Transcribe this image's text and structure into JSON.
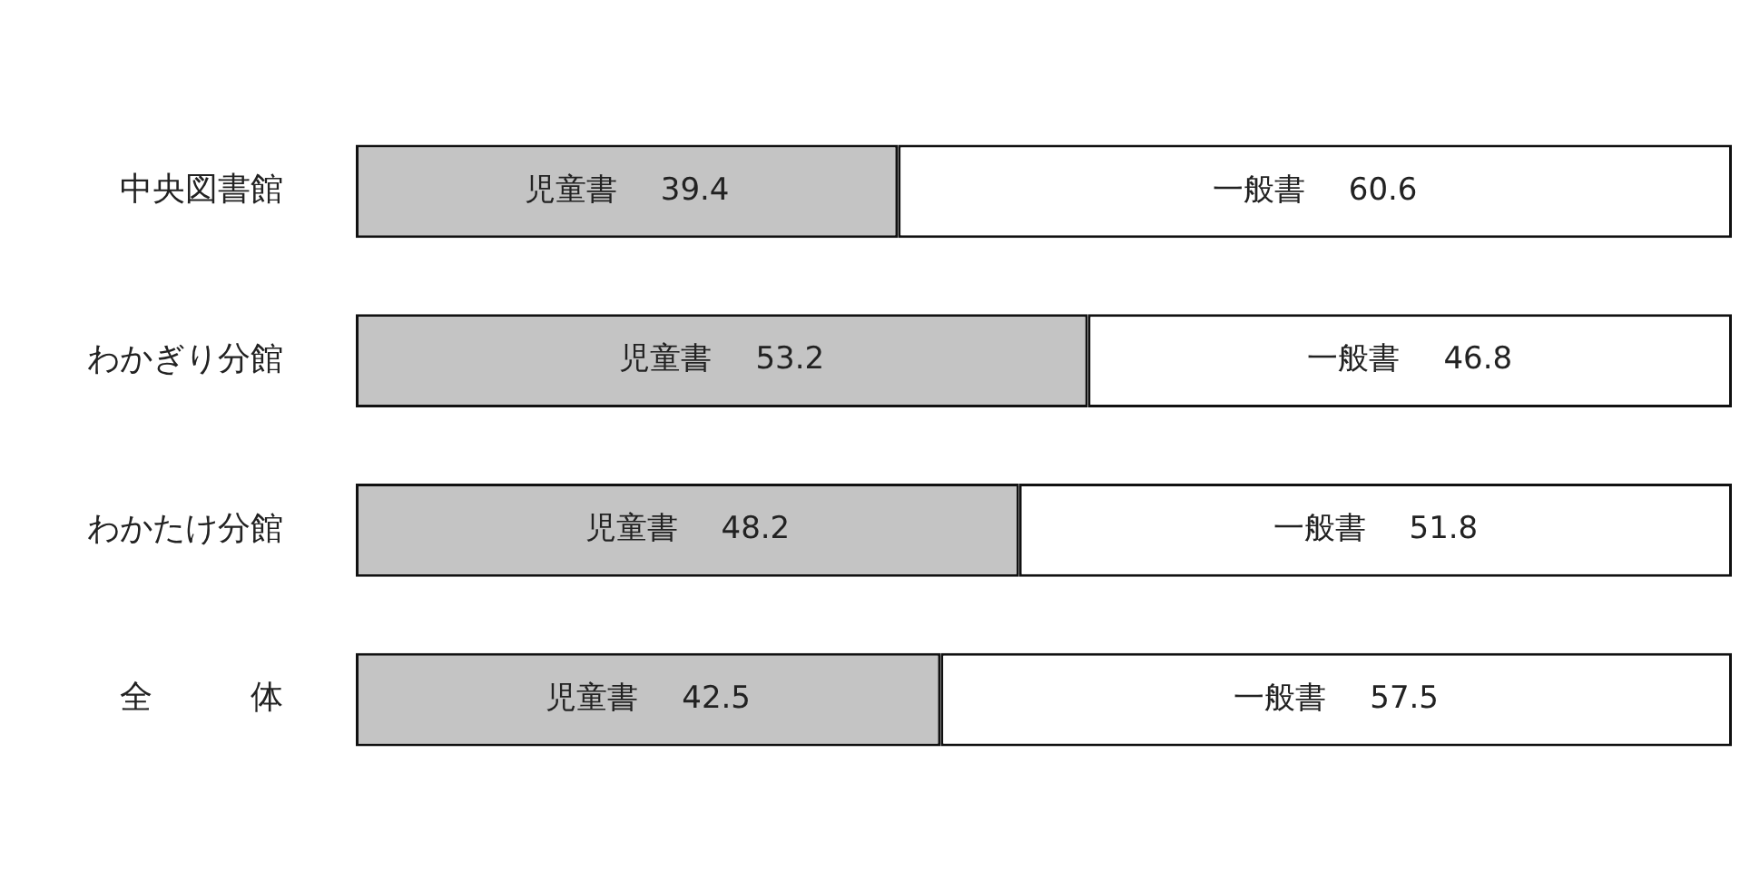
{
  "chart_data": {
    "type": "bar",
    "orientation": "horizontal",
    "stacked": true,
    "categories": [
      "中央図書館",
      "わかぎり分館",
      "わかたけ分館",
      "全　　　体"
    ],
    "series": [
      {
        "name": "児童書",
        "color": "#c4c4c4",
        "values": [
          39.4,
          53.2,
          48.2,
          42.5
        ]
      },
      {
        "name": "一般書",
        "color": "#ffffff",
        "values": [
          60.6,
          46.8,
          51.8,
          57.5
        ]
      }
    ],
    "data_labels": true,
    "legend": false,
    "grid": false
  }
}
